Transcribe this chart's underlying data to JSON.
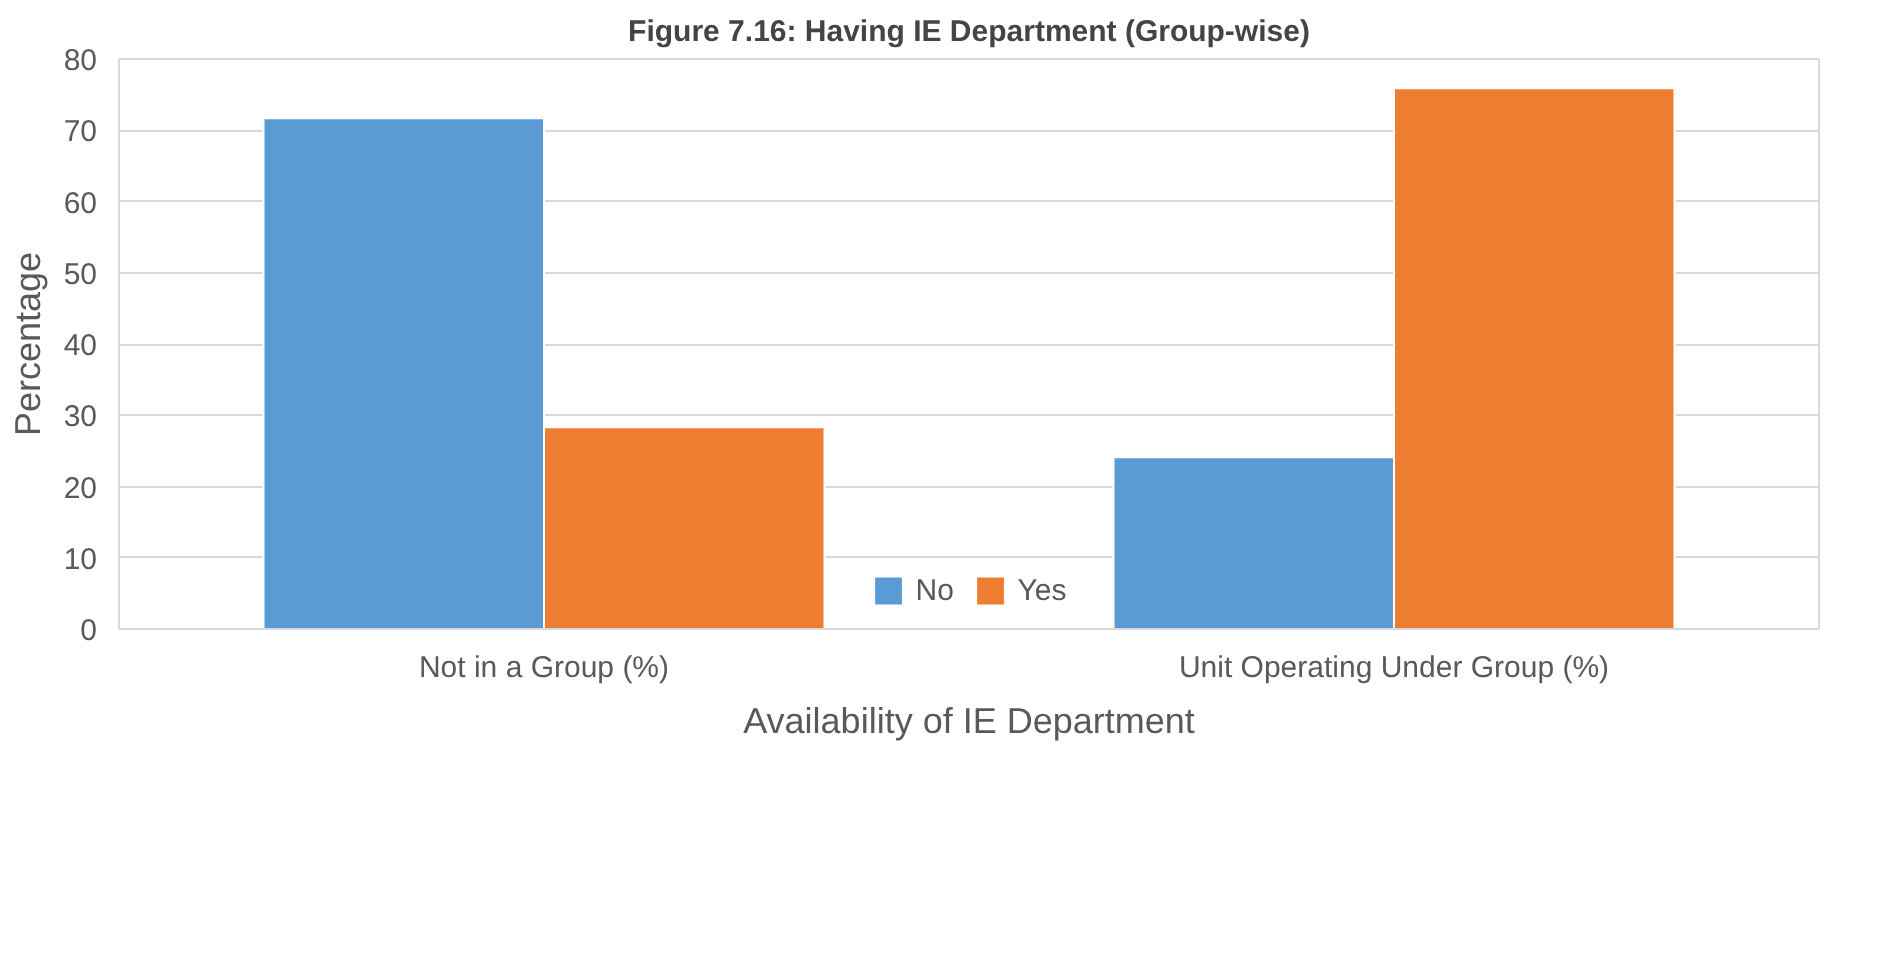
{
  "chart_data": {
    "type": "bar",
    "title": "Figure 7.16: Having IE Department (Group-wise)",
    "xlabel": "Availability of IE Department",
    "ylabel": "Percentage",
    "categories": [
      "Not in a Group (%)",
      "Unit Operating Under Group (%)"
    ],
    "series": [
      {
        "name": "No",
        "color": "#5b9bd5",
        "values": [
          71.7,
          24.1
        ]
      },
      {
        "name": "Yes",
        "color": "#ed7d31",
        "values": [
          28.3,
          75.9
        ]
      }
    ],
    "ylim": [
      0,
      80
    ],
    "yticks": [
      0,
      10,
      20,
      30,
      40,
      50,
      60,
      70,
      80
    ],
    "grid": "y",
    "legend": "bottom"
  }
}
